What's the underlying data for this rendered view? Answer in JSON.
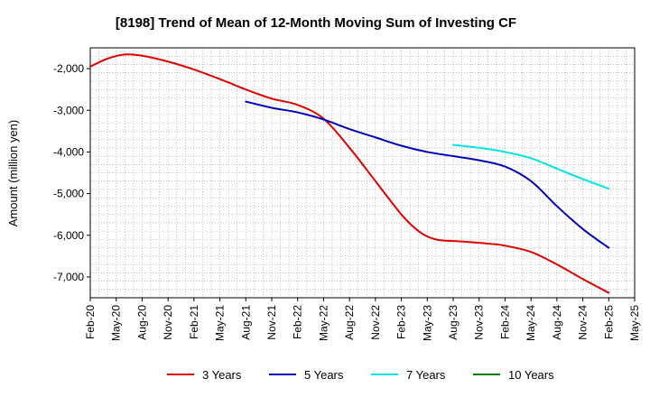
{
  "chart_data": {
    "type": "line",
    "title": "[8198]  Trend of Mean of 12-Month Moving Sum of Investing CF",
    "xlabel": "",
    "ylabel": "Amount (million yen)",
    "ylim": [
      -7500,
      -1500
    ],
    "yticks": [
      -2000,
      -3000,
      -4000,
      -5000,
      -6000,
      -7000
    ],
    "ytick_labels": [
      "-2,000",
      "-3,000",
      "-4,000",
      "-5,000",
      "-6,000",
      "-7,000"
    ],
    "x_range_months": [
      0,
      63
    ],
    "xticks": [
      "Feb-20",
      "May-20",
      "Aug-20",
      "Nov-20",
      "Feb-21",
      "May-21",
      "Aug-21",
      "Nov-21",
      "Feb-22",
      "May-22",
      "Aug-22",
      "Nov-22",
      "Feb-23",
      "May-23",
      "Aug-23",
      "Nov-23",
      "Feb-24",
      "May-24",
      "Aug-24",
      "Nov-24",
      "Feb-25",
      "May-25"
    ],
    "grid": true,
    "legend_position": "bottom",
    "series": [
      {
        "name": "3 Years",
        "color": "#e00000",
        "points": [
          [
            0,
            -1950
          ],
          [
            2,
            -1760
          ],
          [
            4,
            -1660
          ],
          [
            6,
            -1690
          ],
          [
            9,
            -1830
          ],
          [
            12,
            -2020
          ],
          [
            15,
            -2250
          ],
          [
            18,
            -2500
          ],
          [
            21,
            -2720
          ],
          [
            24,
            -2870
          ],
          [
            27,
            -3200
          ],
          [
            30,
            -3900
          ],
          [
            33,
            -4700
          ],
          [
            36,
            -5500
          ],
          [
            38,
            -5900
          ],
          [
            40,
            -6100
          ],
          [
            43,
            -6150
          ],
          [
            46,
            -6200
          ],
          [
            48,
            -6250
          ],
          [
            51,
            -6400
          ],
          [
            54,
            -6700
          ],
          [
            57,
            -7050
          ],
          [
            60,
            -7380
          ]
        ]
      },
      {
        "name": "5 Years",
        "color": "#0000c0",
        "points": [
          [
            18,
            -2790
          ],
          [
            21,
            -2940
          ],
          [
            24,
            -3050
          ],
          [
            27,
            -3220
          ],
          [
            30,
            -3450
          ],
          [
            33,
            -3650
          ],
          [
            36,
            -3850
          ],
          [
            39,
            -4000
          ],
          [
            42,
            -4100
          ],
          [
            45,
            -4200
          ],
          [
            48,
            -4350
          ],
          [
            51,
            -4700
          ],
          [
            54,
            -5300
          ],
          [
            57,
            -5850
          ],
          [
            60,
            -6300
          ]
        ]
      },
      {
        "name": "7 Years",
        "color": "#00e5e5",
        "points": [
          [
            42,
            -3830
          ],
          [
            45,
            -3900
          ],
          [
            48,
            -4000
          ],
          [
            51,
            -4150
          ],
          [
            54,
            -4400
          ],
          [
            57,
            -4650
          ],
          [
            60,
            -4880
          ]
        ]
      },
      {
        "name": "10 Years",
        "color": "#008000",
        "points": []
      }
    ]
  }
}
